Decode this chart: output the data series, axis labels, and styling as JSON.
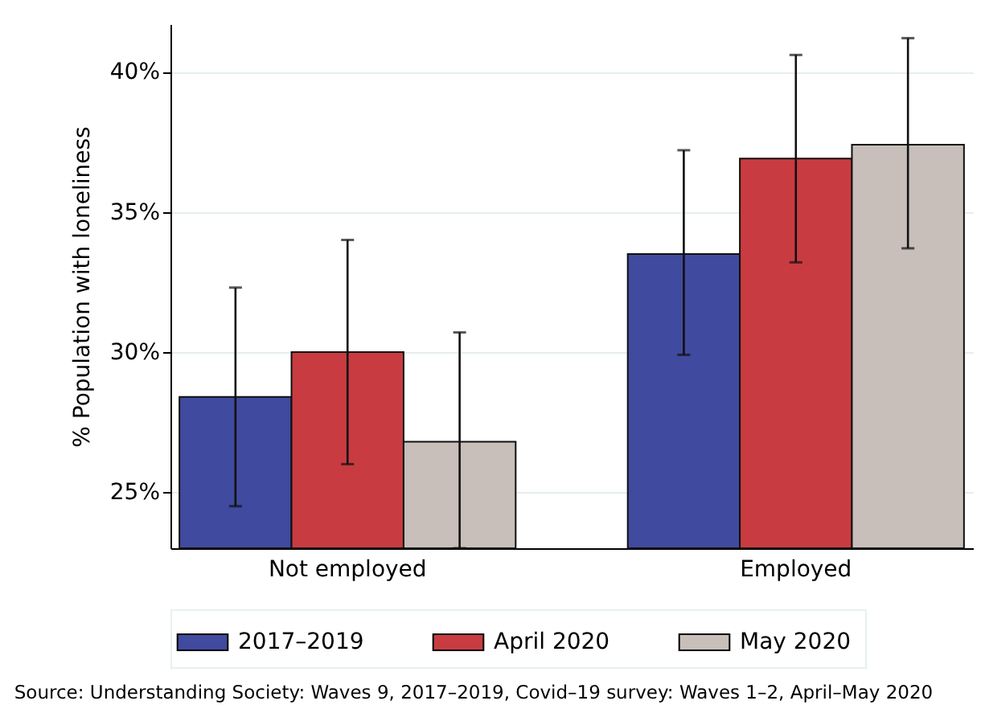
{
  "chart_data": {
    "type": "bar",
    "categories": [
      "Not employed",
      "Employed"
    ],
    "ylabel": "% Population with loneliness",
    "ylim": [
      23,
      41.7
    ],
    "yticks": [
      {
        "value": 25,
        "label": "25%"
      },
      {
        "value": 30,
        "label": "30%"
      },
      {
        "value": 35,
        "label": "35%"
      },
      {
        "value": 40,
        "label": "40%"
      }
    ],
    "grid": "y",
    "legend": "bottom",
    "series": [
      {
        "name": "2017–2019",
        "color": "#404a9e",
        "values": [
          28.4,
          33.5
        ],
        "errors": [
          [
            24.5,
            32.3
          ],
          [
            29.9,
            37.2
          ]
        ]
      },
      {
        "name": "April 2020",
        "color": "#c83c41",
        "values": [
          30.0,
          36.9
        ],
        "errors": [
          [
            26.0,
            34.0
          ],
          [
            33.2,
            40.6
          ]
        ]
      },
      {
        "name": "May 2020",
        "color": "#c8bfba",
        "values": [
          26.8,
          37.4
        ],
        "errors": [
          [
            23.0,
            30.7
          ],
          [
            33.7,
            41.2
          ]
        ]
      }
    ],
    "annotations": [
      "Source: Understanding Society: Waves 9, 2017–2019, Covid–19 survey: Waves 1–2, April–May 2020"
    ]
  }
}
